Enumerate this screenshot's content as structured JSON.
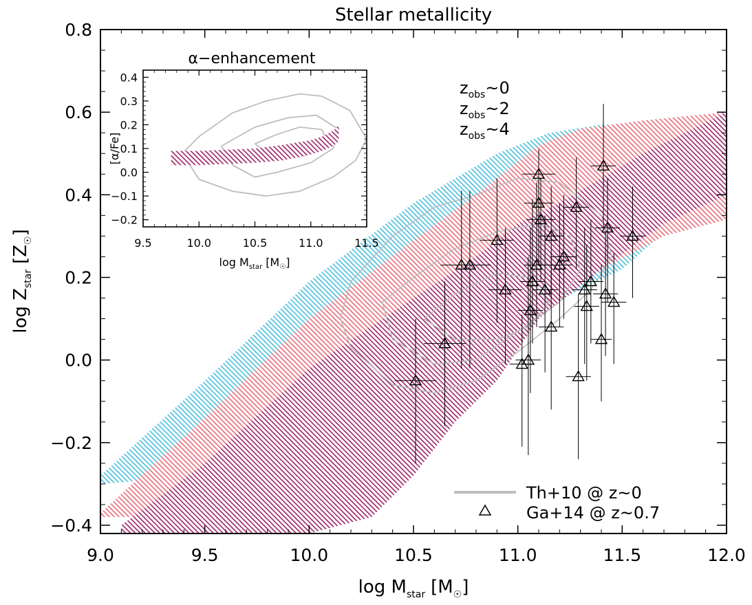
{
  "chart_data": {
    "type": "scatter",
    "title": "Stellar metallicity",
    "xlabel": "log M",
    "xlabel_sub": "star",
    "xlabel_unit_open": "[M",
    "xlabel_unit_close": "]",
    "ylabel": "log Z",
    "ylabel_sub": "star",
    "ylabel_unit_open": "[Z",
    "ylabel_unit_close": "]",
    "xlim": [
      9.0,
      12.0
    ],
    "ylim": [
      -0.42,
      0.8
    ],
    "xticks": [
      9.0,
      9.5,
      10.0,
      10.5,
      11.0,
      11.5,
      12.0
    ],
    "xtick_labels": [
      "9.0",
      "9.5",
      "10.0",
      "10.5",
      "11.0",
      "11.5",
      "12.0"
    ],
    "yticks": [
      -0.4,
      -0.2,
      0.0,
      0.2,
      0.4,
      0.6,
      0.8
    ],
    "ytick_labels": [
      "−0.4",
      "−0.2",
      "0.0",
      "0.2",
      "0.4",
      "0.6",
      "0.8"
    ],
    "colors": {
      "z0": "#9e2a6c",
      "z2": "#e8707e",
      "z4": "#4fc1dc",
      "contour": "#bdbdbd",
      "points": "#000000"
    },
    "model_legend": [
      {
        "prefix": "z",
        "sub": "obs",
        "suffix": "~0",
        "color": "#9e2a6c"
      },
      {
        "prefix": "z",
        "sub": "obs",
        "suffix": "~2",
        "color": "#e8707e"
      },
      {
        "prefix": "z",
        "sub": "obs",
        "suffix": "~4",
        "color": "#4fc1dc"
      }
    ],
    "bands": [
      {
        "color": "#4fc1dc",
        "x_upper": [
          9.0,
          9.5,
          10.0,
          10.5,
          10.9,
          11.15,
          11.4,
          11.6,
          12.0
        ],
        "upper": [
          -0.28,
          -0.05,
          0.19,
          0.38,
          0.5,
          0.55,
          0.57,
          0.57,
          0.55
        ],
        "x_lower": [
          9.0,
          9.5,
          10.0,
          10.3,
          10.6,
          10.8,
          10.95,
          11.1,
          11.5,
          11.75,
          12.0
        ],
        "lower": [
          -0.3,
          -0.28,
          -0.24,
          -0.18,
          -0.15,
          -0.1,
          0.0,
          0.12,
          0.22,
          0.33,
          0.4
        ]
      },
      {
        "color": "#e8707e",
        "x_upper": [
          9.0,
          9.5,
          10.0,
          10.5,
          10.8,
          11.1,
          11.3,
          11.6,
          12.0
        ],
        "upper": [
          -0.37,
          -0.14,
          0.1,
          0.29,
          0.4,
          0.52,
          0.56,
          0.58,
          0.6
        ],
        "x_lower": [
          9.0,
          9.5,
          10.0,
          10.3,
          10.6,
          10.85,
          11.0,
          11.15,
          11.4,
          11.7,
          12.0
        ],
        "lower": [
          -0.38,
          -0.38,
          -0.36,
          -0.26,
          -0.1,
          -0.01,
          0.06,
          0.15,
          0.22,
          0.3,
          0.34
        ]
      },
      {
        "color": "#9e2a6c",
        "x_upper": [
          9.1,
          9.5,
          10.0,
          10.5,
          10.8,
          11.0,
          11.2,
          11.4,
          11.6,
          12.0
        ],
        "upper": [
          -0.4,
          -0.25,
          -0.02,
          0.15,
          0.25,
          0.33,
          0.38,
          0.44,
          0.5,
          0.6
        ],
        "x_lower": [
          9.1,
          9.5,
          10.0,
          10.3,
          10.5,
          10.7,
          10.9,
          11.1,
          11.4,
          11.7,
          12.0
        ],
        "lower": [
          -0.42,
          -0.42,
          -0.42,
          -0.38,
          -0.28,
          -0.15,
          -0.05,
          0.1,
          0.22,
          0.33,
          0.4
        ]
      }
    ],
    "contours": [
      {
        "x": [
          10.2,
          10.4,
          10.6,
          10.8,
          11.0,
          11.2,
          11.4,
          11.45,
          11.35,
          11.2,
          11.0,
          10.8,
          10.6,
          10.4,
          10.2,
          10.15,
          10.2
        ],
        "y": [
          0.19,
          0.3,
          0.37,
          0.4,
          0.44,
          0.43,
          0.35,
          0.25,
          0.17,
          0.1,
          0.02,
          -0.05,
          -0.08,
          -0.06,
          0.03,
          0.1,
          0.19
        ]
      },
      {
        "x": [
          10.35,
          10.5,
          10.7,
          10.9,
          11.1,
          11.25,
          11.3,
          11.2,
          11.0,
          10.8,
          10.6,
          10.4,
          10.35
        ],
        "y": [
          0.14,
          0.2,
          0.27,
          0.31,
          0.33,
          0.3,
          0.22,
          0.14,
          0.07,
          0.0,
          -0.01,
          0.05,
          0.14
        ]
      },
      {
        "x": [
          10.55,
          10.7,
          10.9,
          11.05,
          11.15,
          11.05,
          10.9,
          10.7,
          10.55
        ],
        "y": [
          0.1,
          0.16,
          0.21,
          0.2,
          0.14,
          0.08,
          0.05,
          0.05,
          0.1
        ]
      }
    ],
    "points": [
      {
        "x": 10.51,
        "y": -0.05,
        "xerr": 0.1,
        "yerr_lo": 0.2,
        "yerr_hi": 0.15
      },
      {
        "x": 10.65,
        "y": 0.04,
        "xerr": 0.1,
        "yerr_lo": 0.2,
        "yerr_hi": 0.15
      },
      {
        "x": 10.73,
        "y": 0.23,
        "xerr": 0.1,
        "yerr_lo": 0.25,
        "yerr_hi": 0.18
      },
      {
        "x": 10.77,
        "y": 0.23,
        "xerr": 0.1,
        "yerr_lo": 0.25,
        "yerr_hi": 0.18
      },
      {
        "x": 10.9,
        "y": 0.29,
        "xerr": 0.08,
        "yerr_lo": 0.2,
        "yerr_hi": 0.15
      },
      {
        "x": 10.94,
        "y": 0.17,
        "xerr": 0.08,
        "yerr_lo": 0.18,
        "yerr_hi": 0.15
      },
      {
        "x": 11.02,
        "y": -0.01,
        "xerr": 0.06,
        "yerr_lo": 0.2,
        "yerr_hi": 0.12
      },
      {
        "x": 11.05,
        "y": 0.0,
        "xerr": 0.06,
        "yerr_lo": 0.23,
        "yerr_hi": 0.25
      },
      {
        "x": 11.06,
        "y": 0.12,
        "xerr": 0.06,
        "yerr_lo": 0.2,
        "yerr_hi": 0.2
      },
      {
        "x": 11.07,
        "y": 0.19,
        "xerr": 0.06,
        "yerr_lo": 0.15,
        "yerr_hi": 0.2
      },
      {
        "x": 11.09,
        "y": 0.23,
        "xerr": 0.06,
        "yerr_lo": 0.15,
        "yerr_hi": 0.2
      },
      {
        "x": 11.1,
        "y": 0.38,
        "xerr": 0.07,
        "yerr_lo": 0.15,
        "yerr_hi": 0.12
      },
      {
        "x": 11.11,
        "y": 0.34,
        "xerr": 0.07,
        "yerr_lo": 0.15,
        "yerr_hi": 0.1
      },
      {
        "x": 11.1,
        "y": 0.45,
        "xerr": 0.08,
        "yerr_lo": 0.12,
        "yerr_hi": 0.06
      },
      {
        "x": 11.13,
        "y": 0.17,
        "xerr": 0.06,
        "yerr_lo": 0.2,
        "yerr_hi": 0.18
      },
      {
        "x": 11.16,
        "y": 0.3,
        "xerr": 0.06,
        "yerr_lo": 0.15,
        "yerr_hi": 0.12
      },
      {
        "x": 11.16,
        "y": 0.08,
        "xerr": 0.06,
        "yerr_lo": 0.2,
        "yerr_hi": 0.18
      },
      {
        "x": 11.2,
        "y": 0.23,
        "xerr": 0.06,
        "yerr_lo": 0.15,
        "yerr_hi": 0.15
      },
      {
        "x": 11.22,
        "y": 0.25,
        "xerr": 0.06,
        "yerr_lo": 0.15,
        "yerr_hi": 0.15
      },
      {
        "x": 11.28,
        "y": 0.37,
        "xerr": 0.06,
        "yerr_lo": 0.15,
        "yerr_hi": 0.12
      },
      {
        "x": 11.29,
        "y": -0.04,
        "xerr": 0.06,
        "yerr_lo": 0.2,
        "yerr_hi": 0.2
      },
      {
        "x": 11.32,
        "y": 0.17,
        "xerr": 0.06,
        "yerr_lo": 0.18,
        "yerr_hi": 0.15
      },
      {
        "x": 11.33,
        "y": 0.13,
        "xerr": 0.06,
        "yerr_lo": 0.18,
        "yerr_hi": 0.15
      },
      {
        "x": 11.35,
        "y": 0.19,
        "xerr": 0.06,
        "yerr_lo": 0.15,
        "yerr_hi": 0.15
      },
      {
        "x": 11.4,
        "y": 0.05,
        "xerr": 0.05,
        "yerr_lo": 0.15,
        "yerr_hi": 0.18
      },
      {
        "x": 11.41,
        "y": 0.47,
        "xerr": 0.06,
        "yerr_lo": 0.15,
        "yerr_hi": 0.15
      },
      {
        "x": 11.42,
        "y": 0.16,
        "xerr": 0.06,
        "yerr_lo": 0.15,
        "yerr_hi": 0.15
      },
      {
        "x": 11.43,
        "y": 0.32,
        "xerr": 0.06,
        "yerr_lo": 0.18,
        "yerr_hi": 0.12
      },
      {
        "x": 11.46,
        "y": 0.14,
        "xerr": 0.06,
        "yerr_lo": 0.15,
        "yerr_hi": 0.12
      },
      {
        "x": 11.55,
        "y": 0.3,
        "xerr": 0.06,
        "yerr_lo": 0.15,
        "yerr_hi": 0.12
      }
    ],
    "legend": [
      {
        "label": "Th+10 @ z~0",
        "marker": "line",
        "color": "#bdbdbd"
      },
      {
        "label": "Ga+14 @ z~0.7",
        "marker": "triangle",
        "color": "#000000"
      }
    ],
    "inset": {
      "type": "area",
      "title": "α−enhancement",
      "xlabel": "log M",
      "xlabel_sub": "star",
      "xlabel_unit_open": "[M",
      "xlabel_unit_close": "]",
      "ylabel": "[α/Fe]",
      "xlim": [
        9.5,
        11.5
      ],
      "ylim": [
        -0.23,
        0.43
      ],
      "xticks": [
        9.5,
        10.0,
        10.5,
        11.0,
        11.5
      ],
      "xtick_labels": [
        "9.5",
        "10.0",
        "10.5",
        "11.0",
        "11.5"
      ],
      "yticks": [
        -0.2,
        -0.1,
        0.0,
        0.1,
        0.2,
        0.3,
        0.4
      ],
      "ytick_labels": [
        "−0.2",
        "−0.1",
        "0.0",
        "0.1",
        "0.2",
        "0.3",
        "0.4"
      ],
      "band": {
        "color": "#9e2a6c",
        "x": [
          9.75,
          10.0,
          10.25,
          10.5,
          10.75,
          11.0,
          11.1,
          11.2,
          11.25
        ],
        "upper": [
          0.09,
          0.09,
          0.095,
          0.1,
          0.115,
          0.135,
          0.15,
          0.175,
          0.2
        ],
        "lower": [
          0.03,
          0.03,
          0.035,
          0.04,
          0.05,
          0.075,
          0.09,
          0.11,
          0.13
        ]
      },
      "contours": [
        {
          "x": [
            9.85,
            10.0,
            10.3,
            10.6,
            10.9,
            11.1,
            11.35,
            11.5,
            11.4,
            11.2,
            10.9,
            10.6,
            10.3,
            10.0,
            9.85
          ],
          "y": [
            0.08,
            0.15,
            0.25,
            0.3,
            0.33,
            0.32,
            0.26,
            0.14,
            0.05,
            -0.02,
            -0.08,
            -0.1,
            -0.08,
            -0.03,
            0.08
          ]
        },
        {
          "x": [
            10.2,
            10.5,
            10.8,
            11.05,
            11.25,
            11.2,
            11.0,
            10.7,
            10.5,
            10.3,
            10.2
          ],
          "y": [
            0.11,
            0.19,
            0.23,
            0.24,
            0.18,
            0.1,
            0.04,
            0.0,
            -0.02,
            0.03,
            0.11
          ]
        },
        {
          "x": [
            10.5,
            10.7,
            10.9,
            11.1,
            11.15,
            10.95,
            10.7,
            10.5
          ],
          "y": [
            0.12,
            0.16,
            0.19,
            0.18,
            0.12,
            0.07,
            0.05,
            0.12
          ]
        }
      ]
    }
  }
}
